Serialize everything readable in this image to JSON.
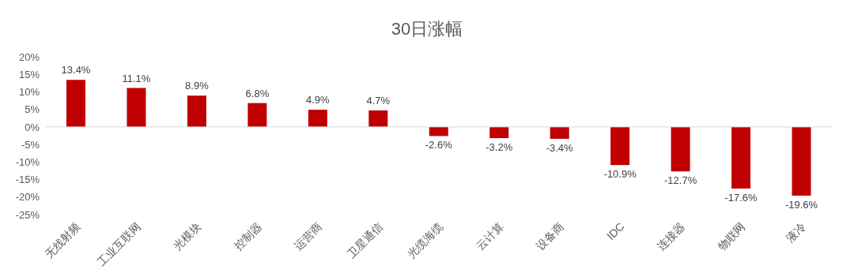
{
  "chart_data": {
    "type": "bar",
    "title": "30日涨幅",
    "categories": [
      "无线射频",
      "工业互联网",
      "光模块",
      "控制器",
      "运营商",
      "卫星通信",
      "光缆海缆",
      "云计算",
      "设备商",
      "IDC",
      "连接器",
      "物联网",
      "液冷"
    ],
    "values": [
      13.4,
      11.1,
      8.9,
      6.8,
      4.9,
      4.7,
      -2.6,
      -3.2,
      -3.4,
      -10.9,
      -12.7,
      -17.6,
      -19.6
    ],
    "value_labels": [
      "13.4%",
      "11.1%",
      "8.9%",
      "6.8%",
      "4.9%",
      "4.7%",
      "-2.6%",
      "-3.2%",
      "-3.4%",
      "-10.9%",
      "-12.7%",
      "-17.6%",
      "-19.6%"
    ],
    "color": "#c00000",
    "ylim": [
      -25,
      20
    ],
    "yticks": [
      {
        "value": 20,
        "label": "20%"
      },
      {
        "value": 15,
        "label": "15%"
      },
      {
        "value": 10,
        "label": "10%"
      },
      {
        "value": 5,
        "label": "5%"
      },
      {
        "value": 0,
        "label": "0%"
      },
      {
        "value": -5,
        "label": "-5%"
      },
      {
        "value": -10,
        "label": "-10%"
      },
      {
        "value": -15,
        "label": "-15%"
      },
      {
        "value": -20,
        "label": "-20%"
      },
      {
        "value": -25,
        "label": "-25%"
      }
    ],
    "legend": false
  }
}
